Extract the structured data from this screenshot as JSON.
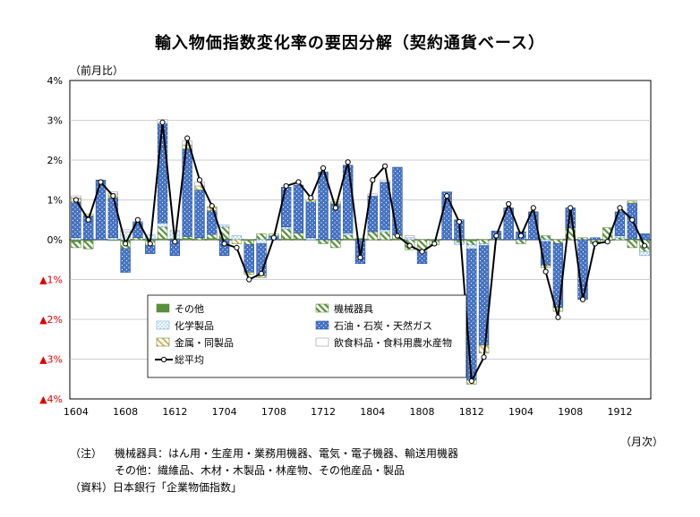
{
  "chart_data": {
    "type": "bar",
    "title": "輸入物価指数変化率の要因分解（契約通貨ベース）",
    "y_unit_label": "（前月比）",
    "x_unit_label": "（月次）",
    "ylim": [
      -4,
      4
    ],
    "y_ticks": [
      {
        "value": 4,
        "label": "4%",
        "negative": false
      },
      {
        "value": 3,
        "label": "3%",
        "negative": false
      },
      {
        "value": 2,
        "label": "2%",
        "negative": false
      },
      {
        "value": 1,
        "label": "1%",
        "negative": false
      },
      {
        "value": 0,
        "label": "0%",
        "negative": false
      },
      {
        "value": -1,
        "label": "▲1%",
        "negative": true
      },
      {
        "value": -2,
        "label": "▲2%",
        "negative": true
      },
      {
        "value": -3,
        "label": "▲3%",
        "negative": true
      },
      {
        "value": -4,
        "label": "▲4%",
        "negative": true
      }
    ],
    "x_ticks": [
      {
        "index": 0,
        "label": "1604"
      },
      {
        "index": 4,
        "label": "1608"
      },
      {
        "index": 8,
        "label": "1612"
      },
      {
        "index": 12,
        "label": "1704"
      },
      {
        "index": 16,
        "label": "1708"
      },
      {
        "index": 20,
        "label": "1712"
      },
      {
        "index": 24,
        "label": "1804"
      },
      {
        "index": 28,
        "label": "1808"
      },
      {
        "index": 32,
        "label": "1812"
      },
      {
        "index": 36,
        "label": "1904"
      },
      {
        "index": 40,
        "label": "1908"
      },
      {
        "index": 44,
        "label": "1912"
      }
    ],
    "categories": [
      "2016-04",
      "2016-05",
      "2016-06",
      "2016-07",
      "2016-08",
      "2016-09",
      "2016-10",
      "2016-11",
      "2016-12",
      "2017-01",
      "2017-02",
      "2017-03",
      "2017-04",
      "2017-05",
      "2017-06",
      "2017-07",
      "2017-08",
      "2017-09",
      "2017-10",
      "2017-11",
      "2017-12",
      "2018-01",
      "2018-02",
      "2018-03",
      "2018-04",
      "2018-05",
      "2018-06",
      "2018-07",
      "2018-08",
      "2018-09",
      "2018-10",
      "2018-11",
      "2018-12",
      "2019-01",
      "2019-02",
      "2019-03",
      "2019-04",
      "2019-05",
      "2019-06",
      "2019-07",
      "2019-08",
      "2019-09",
      "2019-10",
      "2019-11",
      "2019-12",
      "2020-01",
      "2020-02"
    ],
    "series": [
      {
        "name": "その他",
        "color": "#5a8f3c",
        "pattern": "solid",
        "values": [
          -0.05,
          -0.03,
          0,
          -0.02,
          -0.02,
          0,
          0.02,
          0.02,
          0.03,
          0.03,
          0,
          0.03,
          0.02,
          0,
          -0.02,
          0,
          0,
          0.02,
          0.02,
          0,
          0,
          0,
          0.02,
          0.03,
          0,
          0,
          0.02,
          0,
          0,
          -0.02,
          0,
          -0.02,
          -0.03,
          0,
          0.02,
          0,
          0,
          0,
          0,
          0,
          0,
          0,
          0,
          -0.02,
          0,
          0.02,
          0
        ]
      },
      {
        "name": "機械器具",
        "color": "#5a8f3c",
        "pattern": "hatch",
        "values": [
          -0.15,
          -0.2,
          0,
          0,
          -0.2,
          0.05,
          -0.15,
          0.3,
          0,
          0.05,
          0.05,
          0.1,
          0.3,
          0,
          -0.1,
          0.15,
          0,
          0.25,
          0.15,
          0,
          -0.1,
          -0.2,
          0.1,
          0,
          0.2,
          0.2,
          0.1,
          -0.25,
          -0.3,
          -0.1,
          0,
          -0.05,
          -0.1,
          -0.1,
          0,
          0,
          -0.1,
          0,
          0.1,
          -0.1,
          0.3,
          0.05,
          -0.1,
          0.3,
          0.05,
          -0.2,
          -0.3
        ]
      },
      {
        "name": "化学製品",
        "color": "#6fa8dc",
        "pattern": "dots",
        "values": [
          0.05,
          0,
          0,
          0.05,
          0.2,
          0,
          0.1,
          0.1,
          0.2,
          0,
          0,
          0,
          0.05,
          0.1,
          0,
          -0.1,
          0,
          0.05,
          0,
          0.05,
          0,
          0,
          0.05,
          0,
          0,
          0.05,
          0,
          0.05,
          0,
          0,
          0,
          -0.05,
          -0.1,
          -0.05,
          0,
          0,
          0,
          0,
          -0.05,
          0,
          0,
          0,
          0,
          0,
          0.05,
          0,
          -0.1
        ]
      },
      {
        "name": "石油・石炭・天然ガス",
        "color": "#4472c4",
        "pattern": "dotted-fill",
        "values": [
          0.9,
          0.6,
          1.5,
          1.0,
          -0.6,
          0.4,
          -0.2,
          2.5,
          -0.4,
          2.2,
          1.2,
          0.6,
          -0.4,
          0,
          -0.7,
          -0.8,
          0.1,
          1.0,
          1.2,
          0.9,
          1.7,
          0.9,
          1.7,
          -0.6,
          0.9,
          1.2,
          1.7,
          0,
          -0.3,
          0,
          1.2,
          0.5,
          -3.3,
          -2.5,
          0.2,
          0.8,
          0.2,
          0.7,
          -0.6,
          -1.6,
          0.5,
          -1.5,
          0.05,
          0,
          0.6,
          0.9,
          0.15
        ]
      },
      {
        "name": "金属・同製品",
        "color": "#e2c07a",
        "pattern": "hatch",
        "values": [
          0.1,
          0.05,
          0,
          0.1,
          0,
          0,
          0,
          0,
          0,
          0.1,
          0.1,
          0.1,
          0,
          -0.1,
          -0.05,
          -0.05,
          0.05,
          0,
          0,
          0.05,
          0,
          0.05,
          0,
          0,
          0,
          0,
          0,
          0,
          0,
          0,
          0,
          0,
          -0.1,
          -0.2,
          0,
          0,
          0,
          0,
          -0.05,
          -0.1,
          0,
          0,
          0,
          0,
          0,
          0.05,
          0
        ]
      },
      {
        "name": "飲食料品・食料用農水産物",
        "color": "#ffffff",
        "pattern": "outline",
        "values": [
          0.05,
          0,
          0,
          0.05,
          0.05,
          0,
          0,
          0.1,
          0,
          0.1,
          0.1,
          0,
          0,
          0,
          0,
          0,
          0,
          0,
          0,
          0,
          0,
          0,
          0,
          0,
          0.05,
          0.05,
          0,
          0.05,
          0,
          0,
          0,
          0,
          0,
          0,
          0,
          0,
          0,
          0,
          0,
          0,
          0,
          0,
          0,
          0,
          0,
          0,
          0
        ]
      },
      {
        "name": "総平均",
        "type": "line",
        "color": "#000000",
        "values": [
          1.0,
          0.5,
          1.45,
          1.1,
          -0.1,
          0.5,
          -0.1,
          2.95,
          -0.05,
          2.55,
          1.5,
          0.85,
          -0.1,
          -0.2,
          -1.0,
          -0.85,
          0.05,
          1.35,
          1.45,
          1.05,
          1.8,
          0.8,
          1.95,
          -0.45,
          1.5,
          1.85,
          0.1,
          -0.15,
          -0.3,
          -0.1,
          1.1,
          0.45,
          -3.55,
          -2.95,
          0.1,
          0.9,
          0.1,
          0.8,
          -0.8,
          -1.95,
          0.8,
          -1.5,
          -0.1,
          -0.05,
          0.8,
          0.5,
          -0.15
        ]
      }
    ]
  },
  "notes": {
    "line1_prefix": "（注）",
    "line1_text": "機械器具：はん用・生産用・業務用機器、電気・電子機器、輸送用機器",
    "line2_text": "その他：繊維品、木材・木製品・林産物、その他産品・製品",
    "line3_text": "（資料）日本銀行「企業物価指数」"
  }
}
